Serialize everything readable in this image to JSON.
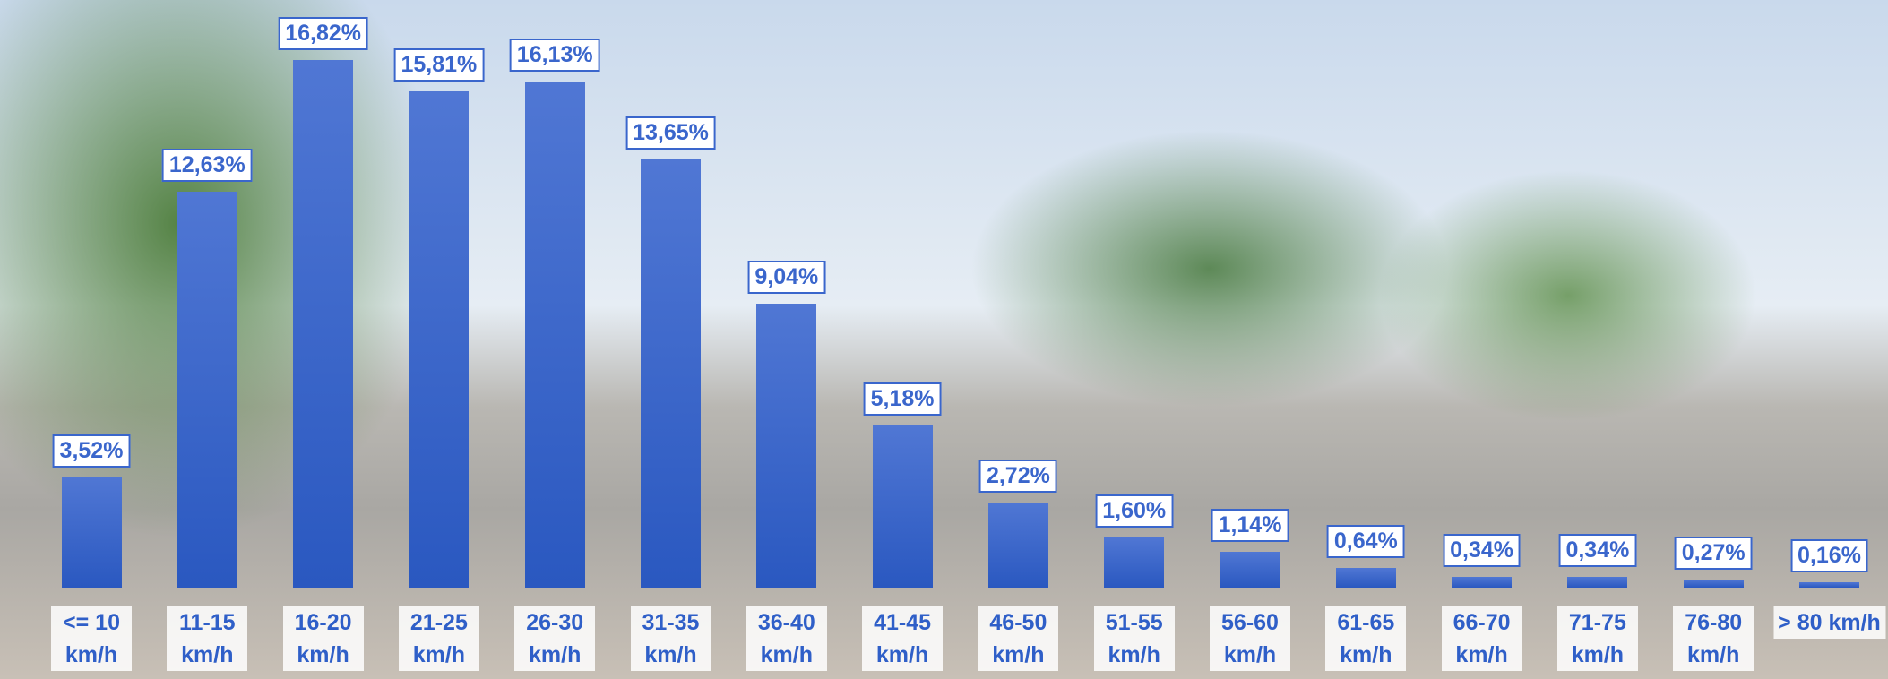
{
  "chart_data": {
    "type": "bar",
    "categories": [
      "<= 10 km/h",
      "11-15 km/h",
      "16-20 km/h",
      "21-25 km/h",
      "26-30 km/h",
      "31-35 km/h",
      "36-40 km/h",
      "41-45 km/h",
      "46-50 km/h",
      "51-55 km/h",
      "56-60 km/h",
      "61-65 km/h",
      "66-70 km/h",
      "71-75 km/h",
      "76-80 km/h",
      "> 80 km/h"
    ],
    "values": [
      3.52,
      12.63,
      16.82,
      15.81,
      16.13,
      13.65,
      9.04,
      5.18,
      2.72,
      1.6,
      1.14,
      0.64,
      0.34,
      0.34,
      0.27,
      0.16
    ],
    "value_labels": [
      "3,52%",
      "12,63%",
      "16,82%",
      "15,81%",
      "16,13%",
      "13,65%",
      "9,04%",
      "5,18%",
      "2,72%",
      "1,60%",
      "1,14%",
      "0,64%",
      "0,34%",
      "0,34%",
      "0,27%",
      "0,16%"
    ],
    "color": "#3a66cc"
  }
}
